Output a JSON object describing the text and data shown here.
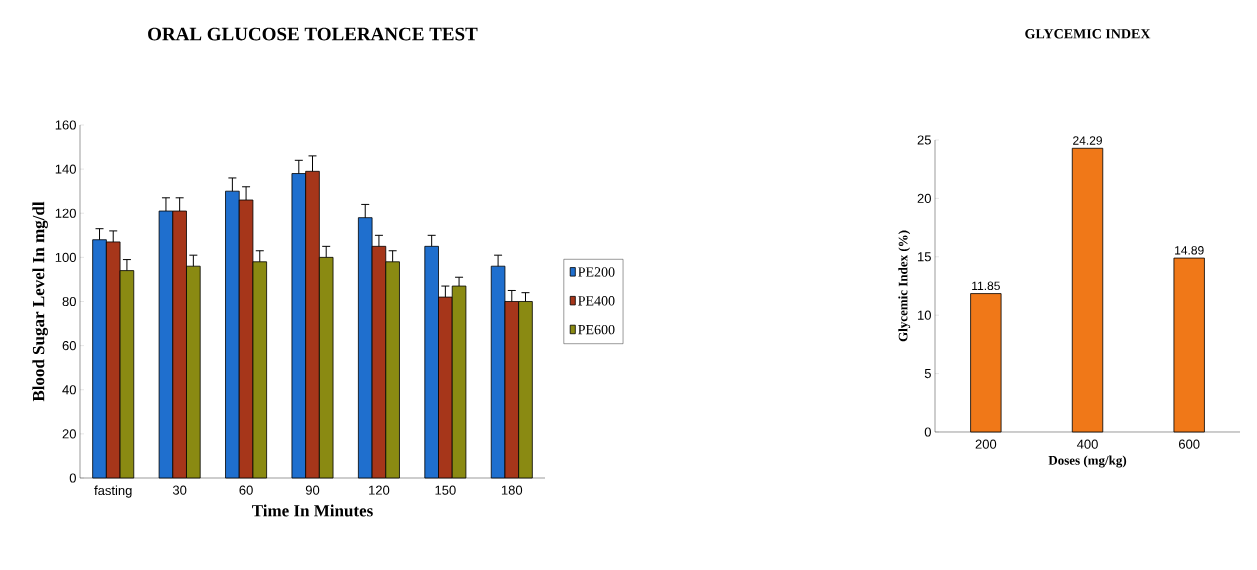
{
  "chart_data": [
    {
      "type": "bar",
      "title": "ORAL GLUCOSE TOLERANCE TEST",
      "xlabel": "Time In Minutes",
      "ylabel": "Blood Sugar Level In mg/dl",
      "categories": [
        "fasting",
        "30",
        "60",
        "90",
        "120",
        "150",
        "180"
      ],
      "series": [
        {
          "name": "PE200",
          "color": "#1f6fce",
          "values": [
            108,
            121,
            130,
            138,
            118,
            105,
            96
          ],
          "errors": [
            5,
            6,
            6,
            6,
            6,
            5,
            5
          ]
        },
        {
          "name": "PE400",
          "color": "#a6361a",
          "values": [
            107,
            121,
            126,
            139,
            105,
            82,
            80
          ],
          "errors": [
            5,
            6,
            6,
            7,
            5,
            5,
            5
          ]
        },
        {
          "name": "PE600",
          "color": "#8a8a12",
          "values": [
            94,
            96,
            98,
            100,
            98,
            87,
            80
          ],
          "errors": [
            5,
            5,
            5,
            5,
            5,
            4,
            4
          ]
        }
      ],
      "ylim": [
        0,
        160
      ],
      "yticks": [
        0,
        20,
        40,
        60,
        80,
        100,
        120,
        140,
        160
      ],
      "legend": "right"
    },
    {
      "type": "bar",
      "title": "GLYCEMIC INDEX",
      "xlabel": "Doses (mg/kg)",
      "ylabel": "Glycemic Index (%)",
      "categories": [
        "200",
        "400",
        "600"
      ],
      "values": [
        11.85,
        24.29,
        14.89
      ],
      "color": "#f07818",
      "data_labels": true,
      "ylim": [
        0,
        25
      ],
      "yticks": [
        0,
        5,
        10,
        15,
        20,
        25
      ]
    }
  ]
}
